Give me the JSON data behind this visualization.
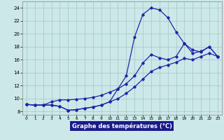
{
  "xlabel": "Graphe des températures (°C)",
  "bg_color": "#cce8e8",
  "grid_color": "#aacccc",
  "line_color": "#2222aa",
  "label_bar_color": "#1a1a8c",
  "label_text_color": "#ffffff",
  "xlim": [
    -0.5,
    23.5
  ],
  "ylim": [
    7.5,
    25.0
  ],
  "x_ticks": [
    0,
    1,
    2,
    3,
    4,
    5,
    6,
    7,
    8,
    9,
    10,
    11,
    12,
    13,
    14,
    15,
    16,
    17,
    18,
    19,
    20,
    21,
    22,
    23
  ],
  "y_ticks": [
    8,
    10,
    12,
    14,
    16,
    18,
    20,
    22,
    24
  ],
  "line1_x": [
    0,
    1,
    2,
    3,
    4,
    5,
    6,
    7,
    8,
    9,
    10,
    11,
    12,
    13,
    14,
    15,
    16,
    17,
    18,
    19,
    20,
    21,
    22,
    23
  ],
  "line1_y": [
    9.1,
    9.0,
    9.0,
    9.0,
    8.8,
    8.2,
    8.3,
    8.5,
    8.7,
    9.0,
    9.5,
    11.5,
    13.5,
    19.5,
    23.0,
    24.0,
    23.7,
    22.5,
    20.3,
    18.5,
    17.5,
    17.2,
    18.0,
    16.5
  ],
  "line2_x": [
    0,
    1,
    2,
    3,
    4,
    5,
    6,
    7,
    8,
    9,
    10,
    11,
    12,
    13,
    14,
    15,
    16,
    17,
    18,
    19,
    20,
    21,
    22,
    23
  ],
  "line2_y": [
    9.1,
    9.0,
    9.0,
    9.5,
    9.8,
    9.8,
    9.9,
    10.0,
    10.2,
    10.5,
    11.0,
    11.5,
    12.3,
    13.5,
    15.5,
    16.8,
    16.3,
    16.0,
    16.5,
    18.5,
    17.0,
    17.3,
    18.0,
    16.5
  ],
  "line3_x": [
    0,
    1,
    2,
    3,
    4,
    5,
    6,
    7,
    8,
    9,
    10,
    11,
    12,
    13,
    14,
    15,
    16,
    17,
    18,
    19,
    20,
    21,
    22,
    23
  ],
  "line3_y": [
    9.1,
    9.0,
    9.0,
    9.0,
    8.8,
    8.2,
    8.3,
    8.5,
    8.7,
    9.0,
    9.5,
    10.0,
    10.8,
    11.8,
    13.0,
    14.2,
    14.8,
    15.2,
    15.6,
    16.2,
    16.0,
    16.5,
    17.0,
    16.5
  ]
}
